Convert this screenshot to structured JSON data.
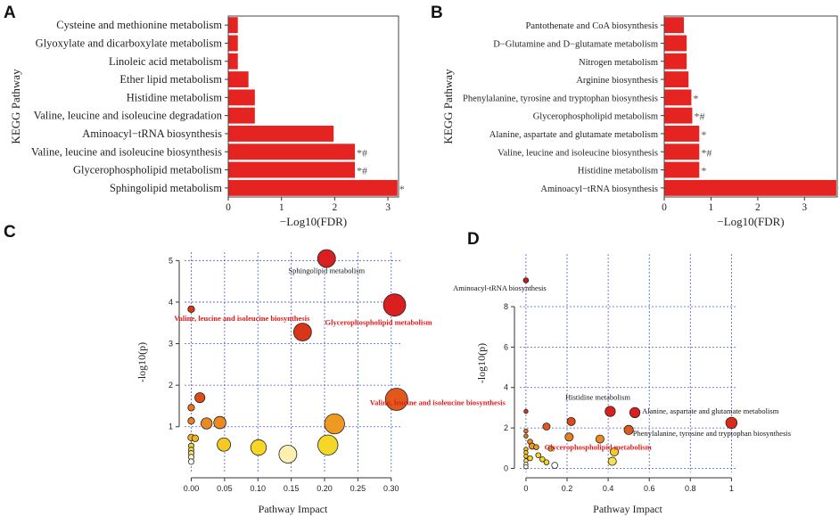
{
  "panels": {
    "a": "A",
    "b": "B",
    "c": "C",
    "d": "D"
  },
  "chart_data": [
    {
      "id": "A",
      "type": "bar",
      "orientation": "horizontal",
      "ylabel": "KEGG Pathway",
      "xlabel": "−Log10(FDR)",
      "xlim": [
        0,
        3.2
      ],
      "xticks": [
        0,
        1,
        2,
        3
      ],
      "categories": [
        "Cysteine and methionine metabolism",
        "Glyoxylate and dicarboxylate metabolism",
        "Linoleic acid metabolism",
        "Ether lipid metabolism",
        "Histidine metabolism",
        "Valine, leucine and isoleucine degradation",
        "Aminoacyl−tRNA biosynthesis",
        "Valine, leucine and isoleucine biosynthesis",
        "Glycerophospholipid metabolism",
        "Sphingolipid metabolism"
      ],
      "values": [
        0.18,
        0.18,
        0.18,
        0.38,
        0.5,
        0.5,
        1.98,
        2.38,
        2.38,
        3.18
      ],
      "markers": [
        "",
        "",
        "",
        "",
        "",
        "",
        "",
        "*#",
        "*#",
        "*"
      ],
      "color": "#e52421"
    },
    {
      "id": "B",
      "type": "bar",
      "orientation": "horizontal",
      "ylabel": "KEGG Pathway",
      "xlabel": "−Log10(FDR)",
      "xlim": [
        0,
        3.7
      ],
      "xticks": [
        0,
        1,
        2,
        3
      ],
      "categories": [
        "Pantothenate and CoA biosynthesis",
        "D−Glutamine and D−glutamate metabolism",
        "Nitrogen metabolism",
        "Arginine biosynthesis",
        "Phenylalanine, tyrosine and tryptophan biosynthesis",
        "Glycerophospholipid metabolism",
        "Alanine, aspartate and glutamate metabolism",
        "Valine, leucine and isoleucine biosynthesis",
        "Histidine metabolism",
        "Aminoacyl−tRNA biosynthesis"
      ],
      "values": [
        0.42,
        0.48,
        0.48,
        0.52,
        0.58,
        0.6,
        0.75,
        0.75,
        0.75,
        3.68
      ],
      "markers": [
        "",
        "",
        "",
        "",
        "*",
        "*#",
        "*",
        "*#",
        "*",
        "*"
      ],
      "color": "#e52421"
    },
    {
      "id": "C",
      "type": "scatter",
      "xlabel": "Pathway Impact",
      "ylabel": "-log10(p)",
      "xlim": [
        -0.01,
        0.315
      ],
      "ylim": [
        -0.1,
        5.2
      ],
      "xticks": [
        0.0,
        0.05,
        0.1,
        0.15,
        0.2,
        0.25,
        0.3
      ],
      "xtick_labels": [
        "0.00",
        "0.05",
        "0.10",
        "0.15",
        "0.20",
        "0.25",
        "0.30"
      ],
      "yticks": [
        1,
        2,
        3,
        4,
        5
      ],
      "points": [
        {
          "x": 0.203,
          "y": 5.05,
          "size": 8,
          "color": "#d91f1f"
        },
        {
          "x": 0.305,
          "y": 3.93,
          "size": 10,
          "color": "#d91f1f"
        },
        {
          "x": 0.0,
          "y": 3.83,
          "size": 3,
          "color": "#d93518"
        },
        {
          "x": 0.167,
          "y": 3.28,
          "size": 8,
          "color": "#d93518"
        },
        {
          "x": 0.013,
          "y": 1.7,
          "size": 4.5,
          "color": "#e04a14"
        },
        {
          "x": 0.308,
          "y": 1.66,
          "size": 10,
          "color": "#e0591a"
        },
        {
          "x": 0.0,
          "y": 1.46,
          "size": 3,
          "color": "#e8751b"
        },
        {
          "x": 0.0,
          "y": 1.14,
          "size": 3,
          "color": "#e8801f"
        },
        {
          "x": 0.023,
          "y": 1.08,
          "size": 5,
          "color": "#ea8a20"
        },
        {
          "x": 0.043,
          "y": 1.1,
          "size": 5.5,
          "color": "#ea8a20"
        },
        {
          "x": 0.215,
          "y": 1.07,
          "size": 9,
          "color": "#ee9a22"
        },
        {
          "x": 0.0,
          "y": 0.74,
          "size": 3,
          "color": "#f2b51f"
        },
        {
          "x": 0.006,
          "y": 0.72,
          "size": 3,
          "color": "#f2b51f"
        },
        {
          "x": 0.049,
          "y": 0.57,
          "size": 6,
          "color": "#f5c922"
        },
        {
          "x": 0.101,
          "y": 0.5,
          "size": 7,
          "color": "#f7d626"
        },
        {
          "x": 0.205,
          "y": 0.56,
          "size": 9,
          "color": "#f5d827"
        },
        {
          "x": 0.145,
          "y": 0.34,
          "size": 8,
          "color": "#faf0b0"
        },
        {
          "x": 0.0,
          "y": 0.54,
          "size": 2.5,
          "color": "#f3d23a"
        },
        {
          "x": 0.0,
          "y": 0.44,
          "size": 2.5,
          "color": "#f3dd55"
        },
        {
          "x": 0.0,
          "y": 0.36,
          "size": 2.5,
          "color": "#f6e47a"
        },
        {
          "x": 0.0,
          "y": 0.27,
          "size": 2.5,
          "color": "#fbf3c8"
        },
        {
          "x": 0.0,
          "y": 0.16,
          "size": 2.5,
          "color": "#ffffff"
        }
      ],
      "annotations": [
        {
          "text": "Sphingolipid metabolism",
          "x": 0.203,
          "y": 4.7,
          "color": "#111111",
          "bold": false
        },
        {
          "text": "Valine, leucine and isoleucine biosynthesis",
          "x": 0.076,
          "y": 3.55,
          "color": "#e01c1c",
          "bold": true
        },
        {
          "text": "Glycerophospholipid metabolism",
          "x": 0.281,
          "y": 3.45,
          "color": "#e01c1c",
          "bold": true
        }
      ]
    },
    {
      "id": "D",
      "type": "scatter",
      "xlabel": "Pathway Impact",
      "ylabel": "-log10(p)",
      "xlim": [
        -0.03,
        1.02
      ],
      "ylim": [
        -0.2,
        10.6
      ],
      "xticks": [
        0,
        0.2,
        0.4,
        0.6,
        0.8,
        1
      ],
      "xtick_labels": [
        "0",
        "0.2",
        "0.4",
        "0.6",
        "0.8",
        "1"
      ],
      "yticks": [
        0,
        2,
        4,
        6,
        8
      ],
      "points": [
        {
          "x": 0.0,
          "y": 9.3,
          "size": 2.5,
          "color": "#c81a1a"
        },
        {
          "x": 0.41,
          "y": 2.82,
          "size": 5,
          "color": "#d91f1f"
        },
        {
          "x": 0.53,
          "y": 2.76,
          "size": 5,
          "color": "#d91f1f"
        },
        {
          "x": 1.0,
          "y": 2.25,
          "size": 5.5,
          "color": "#d92a1a"
        },
        {
          "x": 0.0,
          "y": 2.82,
          "size": 2,
          "color": "#d93518"
        },
        {
          "x": 0.22,
          "y": 2.32,
          "size": 4,
          "color": "#e04a14"
        },
        {
          "x": 0.1,
          "y": 2.07,
          "size": 3.5,
          "color": "#e0591a"
        },
        {
          "x": 0.5,
          "y": 1.9,
          "size": 4.5,
          "color": "#e0591a"
        },
        {
          "x": 0.0,
          "y": 1.85,
          "size": 2,
          "color": "#e8751b"
        },
        {
          "x": 0.0,
          "y": 1.6,
          "size": 2,
          "color": "#e8751b"
        },
        {
          "x": 0.21,
          "y": 1.55,
          "size": 4,
          "color": "#e8801f"
        },
        {
          "x": 0.36,
          "y": 1.45,
          "size": 4,
          "color": "#ea8a20"
        },
        {
          "x": 0.02,
          "y": 1.32,
          "size": 2.5,
          "color": "#ea8a20"
        },
        {
          "x": 0.03,
          "y": 1.1,
          "size": 3,
          "color": "#ee9a22"
        },
        {
          "x": 0.05,
          "y": 1.05,
          "size": 2.5,
          "color": "#ee9a22"
        },
        {
          "x": 0.12,
          "y": 0.98,
          "size": 2.5,
          "color": "#f2b51f"
        },
        {
          "x": 0.43,
          "y": 0.82,
          "size": 4,
          "color": "#f5c922"
        },
        {
          "x": 0.0,
          "y": 0.95,
          "size": 2,
          "color": "#f2b51f"
        },
        {
          "x": 0.0,
          "y": 0.78,
          "size": 2,
          "color": "#f5c922"
        },
        {
          "x": 0.0,
          "y": 0.6,
          "size": 2,
          "color": "#f5c922"
        },
        {
          "x": 0.06,
          "y": 0.65,
          "size": 2.5,
          "color": "#f7d626"
        },
        {
          "x": 0.02,
          "y": 0.5,
          "size": 2.5,
          "color": "#f7d626"
        },
        {
          "x": 0.08,
          "y": 0.45,
          "size": 2.5,
          "color": "#f7d626"
        },
        {
          "x": 0.1,
          "y": 0.3,
          "size": 2.5,
          "color": "#f5d827"
        },
        {
          "x": 0.42,
          "y": 0.35,
          "size": 4,
          "color": "#f7e050"
        },
        {
          "x": 0.14,
          "y": 0.15,
          "size": 3,
          "color": "#ffffff"
        },
        {
          "x": 0.0,
          "y": 0.38,
          "size": 2,
          "color": "#f6e47a"
        },
        {
          "x": 0.0,
          "y": 0.2,
          "size": 2,
          "color": "#fbf3c8"
        },
        {
          "x": 0.0,
          "y": 0.08,
          "size": 2,
          "color": "#ffffff"
        }
      ],
      "annotations": [
        {
          "text": "Aminoacyl-tRNA biosynthesis",
          "x": 0.0,
          "y": 8.8,
          "color": "#111111",
          "bold": false,
          "anchor": "start",
          "dx": -0.355
        },
        {
          "text": "Histidine metabolism",
          "x": 0.35,
          "y": 3.4,
          "color": "#111111",
          "bold": false,
          "anchor": "middle"
        },
        {
          "text": "Valine, leucine and isoleucine biosynthesis",
          "x": -0.76,
          "y": 3.12,
          "color": "#e01c1c",
          "bold": true,
          "anchor": "start"
        },
        {
          "text": "Alanine, aspartate and glutamate metabolism",
          "x": 0.565,
          "y": 2.72,
          "color": "#111111",
          "bold": false,
          "anchor": "start"
        },
        {
          "text": "Phenylalanine, tyrosine and tryptophan biosynthesis",
          "x": 0.52,
          "y": 1.6,
          "color": "#111111",
          "bold": false,
          "anchor": "start"
        },
        {
          "text": "Glycerophospholipid metabolism",
          "x": 0.09,
          "y": 0.92,
          "color": "#e01c1c",
          "bold": true,
          "anchor": "start"
        }
      ]
    }
  ]
}
